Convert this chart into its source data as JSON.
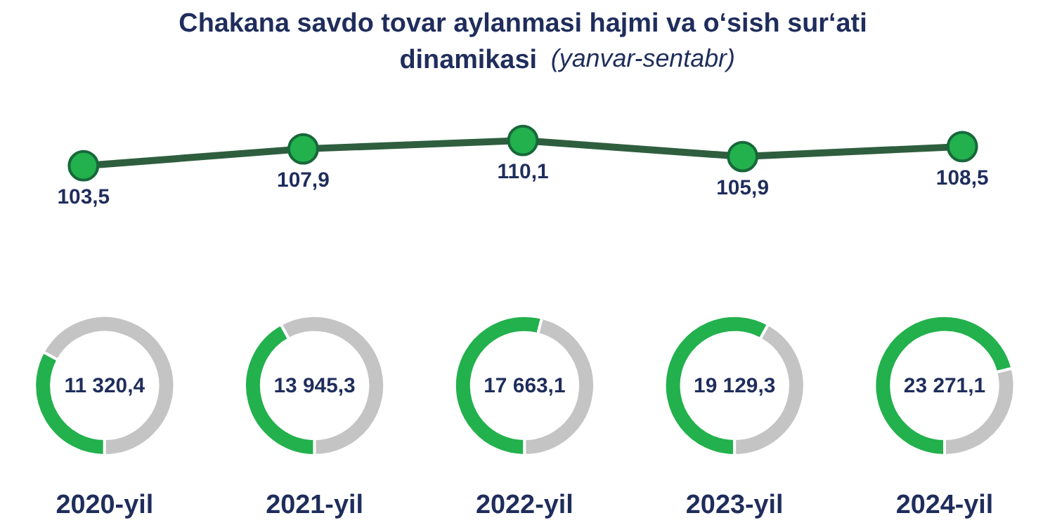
{
  "chart_data": [
    {
      "type": "line",
      "title": "Chakana savdo tovar aylanmasi hajmi va o‘sish sur‘ati dinamikasi",
      "subtitle": "(yanvar-sentabr)",
      "categories": [
        null,
        null,
        null,
        null,
        null
      ],
      "values": [
        103.5,
        107.9,
        110.1,
        105.9,
        108.5
      ],
      "value_labels": [
        "103,5",
        "107,9",
        "110,1",
        "105,9",
        "108,5"
      ],
      "color": "#2e5e3e",
      "marker": "circle",
      "tick_labels": false
    },
    {
      "type": "donut",
      "title": "2020-yil",
      "annotations": [
        "11 320,4"
      ],
      "categories": [
        null,
        null
      ],
      "values": [
        33,
        67
      ],
      "colors": [
        "#22b14c",
        "#c4c4c4"
      ]
    },
    {
      "type": "donut",
      "title": "2021-yil",
      "annotations": [
        "13 945,3"
      ],
      "categories": [
        null,
        null
      ],
      "values": [
        42,
        58
      ],
      "colors": [
        "#22b14c",
        "#c4c4c4"
      ]
    },
    {
      "type": "donut",
      "title": "2022-yil",
      "annotations": [
        "17 663,1"
      ],
      "categories": [
        null,
        null
      ],
      "values": [
        54,
        46
      ],
      "colors": [
        "#22b14c",
        "#c4c4c4"
      ]
    },
    {
      "type": "donut",
      "title": "2023-yil",
      "annotations": [
        "19 129,3"
      ],
      "categories": [
        null,
        null
      ],
      "values": [
        58,
        42
      ],
      "colors": [
        "#22b14c",
        "#c4c4c4"
      ]
    },
    {
      "type": "donut",
      "title": "2024-yil",
      "annotations": [
        "23 271,1"
      ],
      "categories": [
        null,
        null
      ],
      "values": [
        71,
        29
      ],
      "colors": [
        "#22b14c",
        "#c4c4c4"
      ]
    }
  ]
}
